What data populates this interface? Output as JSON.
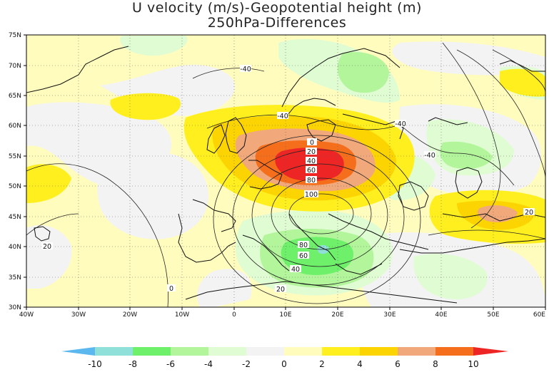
{
  "title": {
    "line1": "U velocity (m/s)-Geopotential height (m)",
    "line2": "250hPa-Differences"
  },
  "axes": {
    "lat_labels": [
      "75N",
      "70N",
      "65N",
      "60N",
      "55N",
      "50N",
      "45N",
      "40N",
      "35N",
      "30N"
    ],
    "lon_labels": [
      "40W",
      "30W",
      "20W",
      "10W",
      "0",
      "10E",
      "20E",
      "30E",
      "40E",
      "50E",
      "60E"
    ]
  },
  "contour_labels": [
    {
      "id": "c1",
      "text": "-40"
    },
    {
      "id": "c2",
      "text": "-40"
    },
    {
      "id": "c3",
      "text": "-40"
    },
    {
      "id": "c4",
      "text": "-40"
    },
    {
      "id": "c5",
      "text": "0"
    },
    {
      "id": "c6",
      "text": "20"
    },
    {
      "id": "c7",
      "text": "40"
    },
    {
      "id": "c8",
      "text": "60"
    },
    {
      "id": "c9",
      "text": "80"
    },
    {
      "id": "c10",
      "text": "100"
    },
    {
      "id": "c11",
      "text": "80"
    },
    {
      "id": "c12",
      "text": "60"
    },
    {
      "id": "c13",
      "text": "40"
    },
    {
      "id": "c14",
      "text": "20"
    },
    {
      "id": "c15",
      "text": "20"
    },
    {
      "id": "c16",
      "text": "0"
    },
    {
      "id": "c17",
      "text": "20"
    }
  ],
  "colorbar": {
    "ticks": [
      "-10",
      "-8",
      "-6",
      "-4",
      "-2",
      "0",
      "2",
      "4",
      "6",
      "8",
      "10"
    ],
    "colors": [
      "#5bb8ef",
      "#8fe0d8",
      "#6ef06a",
      "#b2f59a",
      "#e0fcd2",
      "#f3f3f3",
      "#fffcbd",
      "#ffef1e",
      "#fcd402",
      "#f1a97b",
      "#f46e1c",
      "#ee2525"
    ]
  },
  "fill_colors": {
    "neg_light": "#e0fcd2",
    "neg_med": "#b2f59a",
    "neg_strong": "#6ef06a",
    "neg_extreme": "#8fe0d8",
    "zero": "#f3f3f3",
    "pos_light": "#fffcbd",
    "pos_med": "#ffef1e",
    "pos_strong": "#fcd402",
    "pos_high": "#f1a97b",
    "pos_veryhigh": "#f46e1c",
    "pos_extreme": "#ee2525"
  }
}
